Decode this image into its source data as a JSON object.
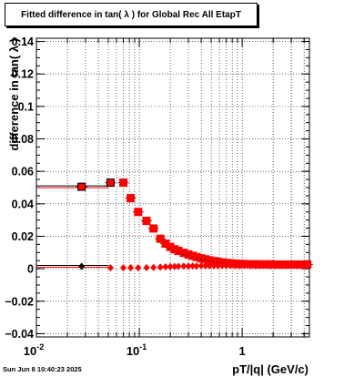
{
  "chart_data": {
    "type": "scatter",
    "title": "Fitted difference in tan( λ ) for Global Rec All EtapT",
    "xlabel": "pT/|q| (GeV/c)",
    "ylabel": "difference in tan( λ )",
    "xscale": "log",
    "xlim": [
      0.01,
      4.5
    ],
    "ylim": [
      -0.042,
      0.142
    ],
    "grid": true,
    "ytick_labels": [
      "−0.04",
      "−0.02",
      "0",
      "0.02",
      "0.04",
      "0.06",
      "0.08",
      "0.1",
      "0.12",
      "0.14"
    ],
    "ytick_values": [
      -0.04,
      -0.02,
      0,
      0.02,
      0.04,
      0.06,
      0.08,
      0.1,
      0.12,
      0.14
    ],
    "xtick_values": [
      0.01,
      0.1,
      1
    ],
    "series": [
      {
        "marker": "square",
        "color": "#ff0000",
        "black_first_points": 2,
        "x": [
          0.0275,
          0.0525,
          0.07,
          0.0825,
          0.0975,
          0.1175,
          0.1375,
          0.16,
          0.18,
          0.2,
          0.22,
          0.24,
          0.27,
          0.3,
          0.33,
          0.36,
          0.4,
          0.44,
          0.48,
          0.53,
          0.58,
          0.64,
          0.7,
          0.77,
          0.85,
          0.95,
          1.05,
          1.2,
          1.35,
          1.5,
          1.7,
          1.9,
          2.1,
          2.4,
          2.7,
          3.0,
          3.4,
          3.8,
          4.3
        ],
        "y": [
          0.0505,
          0.053,
          0.053,
          0.0435,
          0.035,
          0.0295,
          0.0248,
          0.0185,
          0.0155,
          0.0135,
          0.012,
          0.011,
          0.0098,
          0.0088,
          0.008,
          0.0072,
          0.0064,
          0.0058,
          0.0052,
          0.0047,
          0.0043,
          0.0039,
          0.0036,
          0.0034,
          0.0032,
          0.003,
          0.0029,
          0.0028,
          0.0028,
          0.0027,
          0.0027,
          0.0027,
          0.0026,
          0.0026,
          0.0026,
          0.0026,
          0.0026,
          0.0026,
          0.0026
        ]
      },
      {
        "marker": "diamond",
        "color": "#ff0000",
        "black_first_points": 1,
        "x": [
          0.0275,
          0.0525,
          0.07,
          0.0825,
          0.0975,
          0.1175,
          0.1375,
          0.16,
          0.18,
          0.2,
          0.22,
          0.24,
          0.27,
          0.3,
          0.33,
          0.36,
          0.4,
          0.44,
          0.48,
          0.53,
          0.58,
          0.64,
          0.7,
          0.77,
          0.85,
          0.95,
          1.05,
          1.2,
          1.35,
          1.5,
          1.7,
          1.9,
          2.1,
          2.4,
          2.7,
          3.0,
          3.4,
          3.8,
          4.3
        ],
        "y": [
          0.0015,
          0.0006,
          0.0006,
          0.0006,
          0.0006,
          0.0007,
          0.0008,
          0.001,
          0.0012,
          0.0013,
          0.0014,
          0.0015,
          0.0016,
          0.0016,
          0.0017,
          0.0017,
          0.0018,
          0.0018,
          0.0018,
          0.0018,
          0.0019,
          0.0019,
          0.0019,
          0.0019,
          0.0019,
          0.0019,
          0.0019,
          0.0019,
          0.0019,
          0.0019,
          0.0019,
          0.0019,
          0.0019,
          0.0019,
          0.0019,
          0.0019,
          0.0019,
          0.0019,
          0.0019
        ]
      }
    ],
    "fit_lines": [
      {
        "y": 0.0505,
        "x_from": 0.01,
        "x_to": 0.05,
        "color": "#ff0000"
      },
      {
        "y": 0.0015,
        "x_from": 0.01,
        "x_to": 0.05,
        "color": "#ff0000"
      }
    ]
  },
  "timestamp": "Sun Jun  8 10:40:23 2025"
}
